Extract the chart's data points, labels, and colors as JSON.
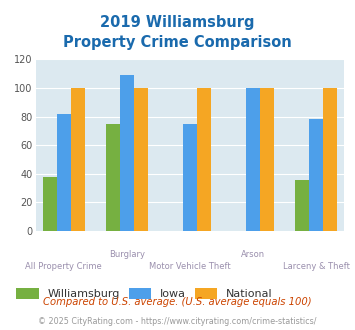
{
  "title_line1": "2019 Williamsburg",
  "title_line2": "Property Crime Comparison",
  "xlabel_top": [
    "",
    "Burglary",
    "",
    "Arson",
    ""
  ],
  "xlabel_bottom": [
    "All Property Crime",
    "",
    "Motor Vehicle Theft",
    "",
    "Larceny & Theft"
  ],
  "williamsburg": [
    38,
    75,
    0,
    0,
    36
  ],
  "iowa": [
    82,
    109,
    75,
    100,
    78
  ],
  "national": [
    100,
    100,
    100,
    100,
    100
  ],
  "williamsburg_color": "#76b041",
  "iowa_color": "#4d9fea",
  "national_color": "#f5a623",
  "background_color": "#dce9f0",
  "ylim": [
    0,
    120
  ],
  "yticks": [
    0,
    20,
    40,
    60,
    80,
    100,
    120
  ],
  "legend_labels": [
    "Williamsburg",
    "Iowa",
    "National"
  ],
  "footnote1": "Compared to U.S. average. (U.S. average equals 100)",
  "footnote2": "© 2025 CityRating.com - https://www.cityrating.com/crime-statistics/",
  "title_color": "#1a6aad",
  "footnote1_color": "#cc4400",
  "footnote2_color": "#999999",
  "footnote2_link_color": "#4d9fea"
}
